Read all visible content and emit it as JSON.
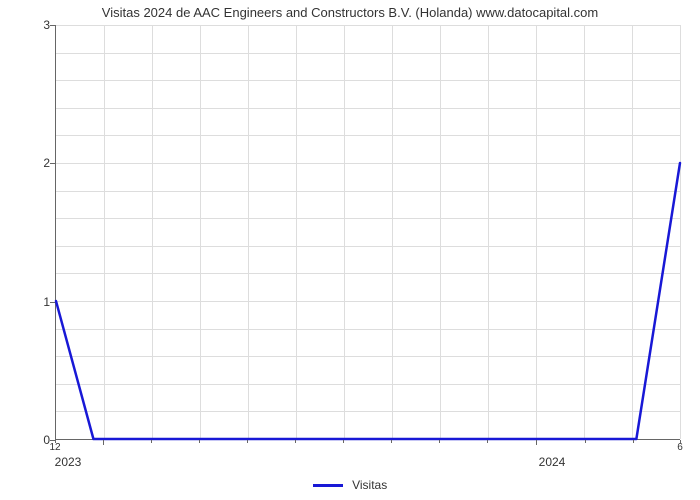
{
  "chart": {
    "type": "line",
    "title": "Visitas 2024 de AAC Engineers and Constructors B.V. (Holanda) www.datocapital.com",
    "title_fontsize": 13,
    "title_color": "#333333",
    "background_color": "#ffffff",
    "grid_color": "#dddddd",
    "axis_color": "#666666",
    "text_color": "#333333",
    "y_axis": {
      "min": 0,
      "max": 3,
      "ticks": [
        0,
        1,
        2,
        3
      ],
      "major_grid_count": 3,
      "minor_per_major": 5
    },
    "x_axis": {
      "major_labels": [
        "2023",
        "2024"
      ],
      "minor_labels_before": "12",
      "minor_labels_after": "6",
      "months_span": 7
    },
    "series": {
      "name": "Visitas",
      "color": "#1818d6",
      "line_width": 2.5,
      "points": [
        {
          "x": 0.0,
          "y": 1.0
        },
        {
          "x": 0.06,
          "y": 0.0
        },
        {
          "x": 0.93,
          "y": 0.0
        },
        {
          "x": 1.0,
          "y": 2.0
        }
      ]
    },
    "legend": {
      "label": "Visitas",
      "position": "bottom-center",
      "line_color": "#1818d6"
    }
  }
}
